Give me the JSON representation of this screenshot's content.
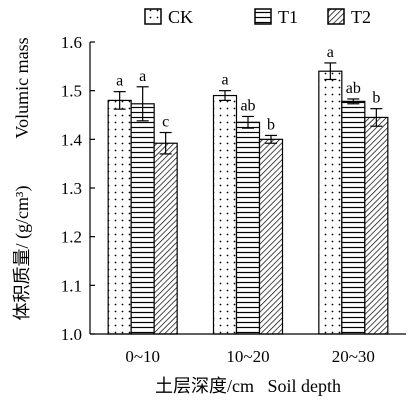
{
  "chart_data": {
    "type": "bar",
    "legend_position": "top",
    "categories": [
      "0~10",
      "10~20",
      "20~30"
    ],
    "series": [
      {
        "name": "CK",
        "pattern": "dots",
        "values": [
          1.48,
          1.49,
          1.54
        ],
        "errors": [
          0.018,
          0.01,
          0.017
        ],
        "significance": [
          "a",
          "a",
          "a"
        ]
      },
      {
        "name": "T1",
        "pattern": "horizontal-lines",
        "values": [
          1.473,
          1.435,
          1.478
        ],
        "errors": [
          0.035,
          0.012,
          0.005
        ],
        "significance": [
          "a",
          "ab",
          "ab"
        ]
      },
      {
        "name": "T2",
        "pattern": "diagonal-lines",
        "values": [
          1.392,
          1.4,
          1.445
        ],
        "errors": [
          0.022,
          0.008,
          0.018
        ],
        "significance": [
          "c",
          "b",
          "b"
        ]
      }
    ],
    "ylim": [
      1.0,
      1.6
    ],
    "yticks": [
      "1.0",
      "1.1",
      "1.2",
      "1.3",
      "1.4",
      "1.5",
      "1.6"
    ],
    "xlabel": "土层深度/cm   Soil depth",
    "ylabel_cn": "体积质量/ (g/cm³)",
    "ylabel_en": "Volumic mass",
    "grid": false
  }
}
